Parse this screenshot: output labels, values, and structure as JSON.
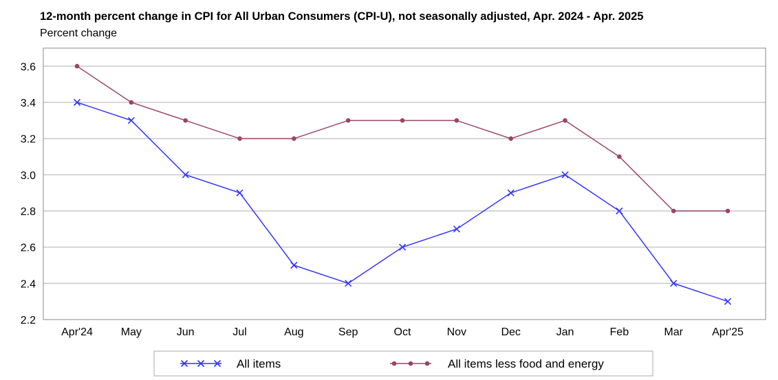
{
  "chart_data": {
    "type": "line",
    "title": "12-month percent change in CPI for All Urban Consumers (CPI-U), not seasonally adjusted, Apr. 2024 - Apr. 2025",
    "subtitle": "Percent change",
    "categories": [
      "Apr'24",
      "May",
      "Jun",
      "Jul",
      "Aug",
      "Sep",
      "Oct",
      "Nov",
      "Dec",
      "Jan",
      "Feb",
      "Mar",
      "Apr'25"
    ],
    "series": [
      {
        "name": "All items",
        "color": "#3333ff",
        "marker": "x",
        "values": [
          3.4,
          3.3,
          3.0,
          2.9,
          2.5,
          2.4,
          2.6,
          2.7,
          2.9,
          3.0,
          2.8,
          2.4,
          2.3
        ]
      },
      {
        "name": "All items less food and energy",
        "color": "#9b4465",
        "marker": "circle",
        "values": [
          3.6,
          3.4,
          3.3,
          3.2,
          3.2,
          3.3,
          3.3,
          3.3,
          3.2,
          3.3,
          3.1,
          2.8,
          2.8
        ]
      }
    ],
    "ylim": [
      2.2,
      3.7
    ],
    "yticks": [
      "2.2",
      "2.4",
      "2.6",
      "2.8",
      "3.0",
      "3.2",
      "3.4",
      "3.6"
    ],
    "grid": true,
    "legend_position": "bottom"
  }
}
